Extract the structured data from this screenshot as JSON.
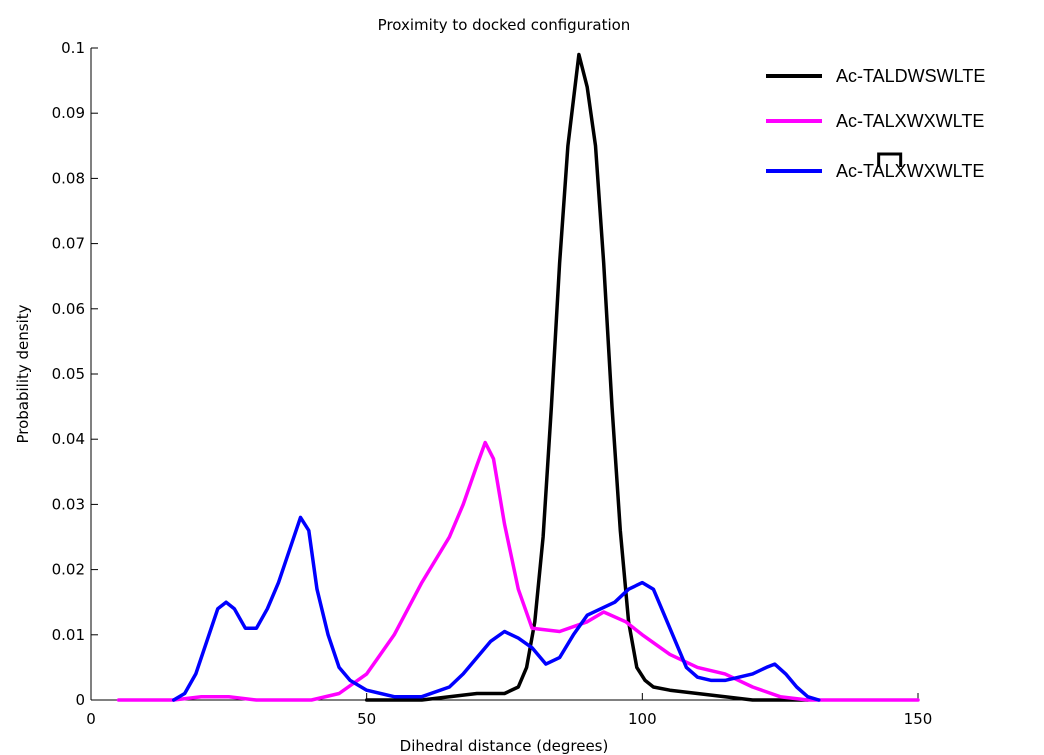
{
  "chart_data": {
    "type": "line",
    "title": "Proximity to docked configuration",
    "xlabel": "Dihedral distance (degrees)",
    "ylabel": "Probability density",
    "xlim": [
      0,
      150
    ],
    "ylim": [
      0,
      0.1
    ],
    "xticks": [
      0,
      50,
      100,
      150
    ],
    "yticks": [
      0,
      0.01,
      0.02,
      0.03,
      0.04,
      0.05,
      0.06,
      0.07,
      0.08,
      0.09,
      0.1
    ],
    "xtick_labels": [
      "0",
      "50",
      "100",
      "150"
    ],
    "ytick_labels": [
      "0",
      "0.01",
      "0.02",
      "0.03",
      "0.04",
      "0.05",
      "0.06",
      "0.07",
      "0.08",
      "0.09",
      "0.1"
    ],
    "grid": false,
    "legend_position": "top-right",
    "series": [
      {
        "name": "Ac-TALDWSWLTE",
        "color": "#000000",
        "bracket": false,
        "x": [
          50,
          55,
          60,
          65,
          70,
          72.5,
          75,
          77.5,
          79,
          80.5,
          82,
          83.5,
          85,
          86.5,
          88.5,
          90,
          91.5,
          93,
          94.5,
          96,
          97.5,
          99,
          100.5,
          102,
          105,
          110,
          115,
          120,
          125,
          130
        ],
        "y": [
          0,
          0,
          0,
          0.0005,
          0.001,
          0.001,
          0.001,
          0.002,
          0.005,
          0.012,
          0.025,
          0.045,
          0.067,
          0.085,
          0.099,
          0.094,
          0.085,
          0.067,
          0.045,
          0.026,
          0.012,
          0.005,
          0.003,
          0.002,
          0.0015,
          0.001,
          0.0005,
          0,
          0,
          0
        ]
      },
      {
        "name": "Ac-TALXWXWLTE",
        "color": "#ff00ff",
        "bracket": false,
        "x": [
          5,
          10,
          15,
          20,
          25,
          30,
          35,
          40,
          45,
          50,
          55,
          60,
          65,
          67.5,
          70,
          71.5,
          73,
          75,
          77.5,
          80,
          85,
          90,
          93,
          97,
          100,
          105,
          110,
          115,
          120,
          125,
          130,
          135,
          150
        ],
        "y": [
          0,
          0,
          0,
          0.0005,
          0.0005,
          0,
          0,
          0,
          0.001,
          0.004,
          0.01,
          0.018,
          0.025,
          0.03,
          0.036,
          0.0395,
          0.037,
          0.027,
          0.017,
          0.011,
          0.0105,
          0.012,
          0.0135,
          0.012,
          0.01,
          0.007,
          0.005,
          0.004,
          0.002,
          0.0005,
          0,
          0,
          0
        ]
      },
      {
        "name": "Ac-TALXWXWLTE",
        "color": "#0000ff",
        "bracket": true,
        "x": [
          15,
          17,
          19,
          21,
          23,
          24.5,
          26,
          28,
          30,
          32,
          34,
          36,
          38,
          39.5,
          41,
          43,
          45,
          47,
          50,
          55,
          60,
          65,
          67.5,
          70,
          72.5,
          75,
          77.5,
          80,
          82.5,
          85,
          87.5,
          90,
          92.5,
          95,
          97.5,
          100,
          102,
          104,
          106,
          108,
          110,
          112.5,
          115,
          117.5,
          120,
          122.5,
          124,
          126,
          128,
          130,
          132
        ],
        "y": [
          0,
          0.001,
          0.004,
          0.009,
          0.014,
          0.015,
          0.014,
          0.011,
          0.011,
          0.014,
          0.018,
          0.023,
          0.028,
          0.026,
          0.017,
          0.01,
          0.005,
          0.003,
          0.0015,
          0.0005,
          0.0005,
          0.002,
          0.004,
          0.0065,
          0.009,
          0.0105,
          0.0095,
          0.008,
          0.0055,
          0.0065,
          0.01,
          0.013,
          0.014,
          0.015,
          0.017,
          0.018,
          0.017,
          0.013,
          0.009,
          0.005,
          0.0035,
          0.003,
          0.003,
          0.0035,
          0.004,
          0.005,
          0.0055,
          0.004,
          0.002,
          0.0005,
          0
        ]
      }
    ]
  }
}
